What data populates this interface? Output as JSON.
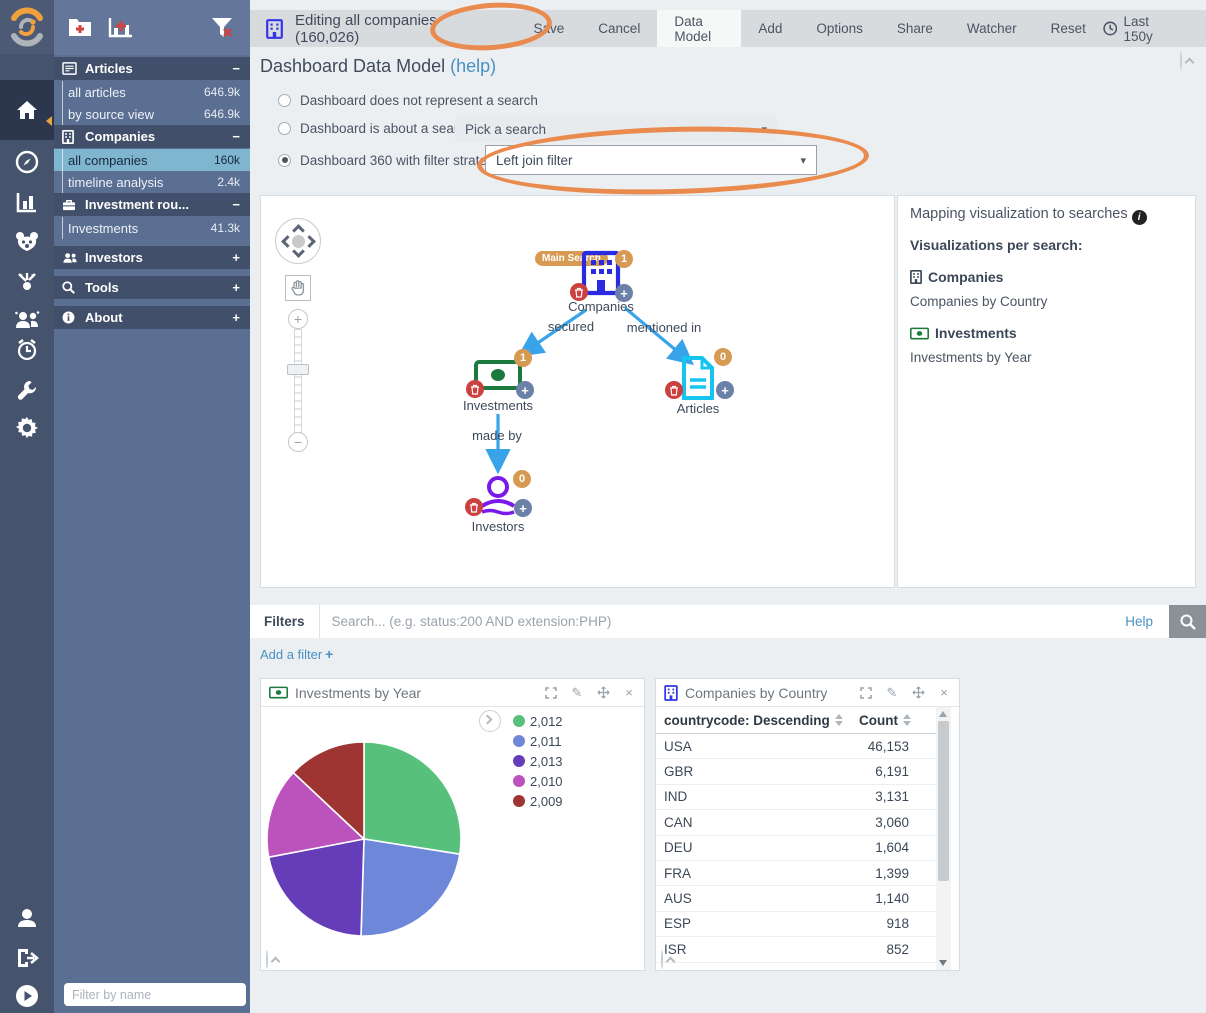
{
  "icons": {
    "plus": "+",
    "minus": "−",
    "close": "×",
    "caret_down": "▾",
    "chevron_right": "›",
    "info": "i",
    "pencil": "✎"
  },
  "rail": {
    "items": [
      "home",
      "discover",
      "visualize",
      "dashboard-bear",
      "graph-flow",
      "people-group",
      "alarm-clock",
      "wrench",
      "gear",
      "user",
      "sign-out",
      "play-circle"
    ]
  },
  "sidebar": {
    "toolbar": [
      "add-folder",
      "add-chart",
      "clear-filter"
    ],
    "filter_placeholder": "Filter by name",
    "sections": [
      {
        "label": "Articles",
        "icon": "newspaper",
        "expanded": true,
        "items": [
          {
            "label": "all articles",
            "count": "646.9k"
          },
          {
            "label": "by source view",
            "count": "646.9k"
          }
        ]
      },
      {
        "label": "Companies",
        "icon": "building",
        "expanded": true,
        "items": [
          {
            "label": "all companies",
            "count": "160k",
            "selected": true
          },
          {
            "label": "timeline analysis",
            "count": "2.4k"
          }
        ]
      },
      {
        "label": "Investment rou...",
        "icon": "briefcase",
        "expanded": true,
        "items": [
          {
            "label": "Investments",
            "count": "41.3k"
          }
        ]
      },
      {
        "label": "Investors",
        "icon": "users",
        "expanded": false,
        "items": []
      },
      {
        "label": "Tools",
        "icon": "search",
        "expanded": false,
        "items": []
      },
      {
        "label": "About",
        "icon": "info",
        "expanded": false,
        "items": []
      }
    ]
  },
  "topbar": {
    "title": "Editing all companies (160,026)",
    "menu": [
      "Save",
      "Cancel",
      "Data Model",
      "Add",
      "Options",
      "Share",
      "Watcher",
      "Reset"
    ],
    "active_menu": "Data Model",
    "time_filter": "Last 150y"
  },
  "data_model": {
    "heading": "Dashboard Data Model",
    "help_link": "(help)",
    "options": [
      {
        "label": "Dashboard does not represent a search",
        "selected": false
      },
      {
        "label": "Dashboard is about a search",
        "selected": false,
        "select_value": "Pick a search",
        "select_style": "flat"
      },
      {
        "label": "Dashboard 360 with filter strategy",
        "selected": true,
        "select_value": "Left join filter",
        "select_style": "boxed"
      }
    ]
  },
  "graph": {
    "main_search_label": "Main Search",
    "nodes": [
      {
        "label": "Companies",
        "count": "1"
      },
      {
        "label": "Investments",
        "count": "1"
      },
      {
        "label": "Articles",
        "count": "0"
      },
      {
        "label": "Investors",
        "count": "0"
      }
    ],
    "edges": [
      {
        "label": "secured"
      },
      {
        "label": "mentioned in"
      },
      {
        "label": "made by"
      }
    ]
  },
  "mapping_panel": {
    "title": "Mapping visualization to searches",
    "subtitle": "Visualizations per search:",
    "groups": [
      {
        "search": "Companies",
        "icon": "building",
        "visualizations": [
          "Companies by Country"
        ]
      },
      {
        "search": "Investments",
        "icon": "money",
        "visualizations": [
          "Investments by Year"
        ]
      }
    ]
  },
  "filters_bar": {
    "label": "Filters",
    "placeholder": "Search... (e.g. status:200 AND extension:PHP)",
    "help": "Help",
    "add_filter": "Add a filter"
  },
  "chart_data": [
    {
      "type": "pie",
      "title": "Investments by Year",
      "legend_position": "right",
      "grid": false,
      "series": [
        {
          "label": "2,012",
          "percent": 27.5,
          "color": "#57c17b"
        },
        {
          "label": "2,011",
          "percent": 23.0,
          "color": "#6f87d8"
        },
        {
          "label": "2,013",
          "percent": 21.5,
          "color": "#663db8"
        },
        {
          "label": "2,010",
          "percent": 15.0,
          "color": "#bc52bc"
        },
        {
          "label": "2,009",
          "percent": 13.0,
          "color": "#9e3533"
        }
      ]
    },
    {
      "type": "table",
      "title": "Companies by Country",
      "columns": [
        "countrycode: Descending",
        "Count"
      ],
      "rows": [
        {
          "label": "USA",
          "value": 46153,
          "display": "46,153"
        },
        {
          "label": "GBR",
          "value": 6191,
          "display": "6,191"
        },
        {
          "label": "IND",
          "value": 3131,
          "display": "3,131"
        },
        {
          "label": "CAN",
          "value": 3060,
          "display": "3,060"
        },
        {
          "label": "DEU",
          "value": 1604,
          "display": "1,604"
        },
        {
          "label": "FRA",
          "value": 1399,
          "display": "1,399"
        },
        {
          "label": "AUS",
          "value": 1140,
          "display": "1,140"
        },
        {
          "label": "ESP",
          "value": 918,
          "display": "918"
        },
        {
          "label": "ISR",
          "value": 852,
          "display": "852"
        }
      ]
    }
  ]
}
